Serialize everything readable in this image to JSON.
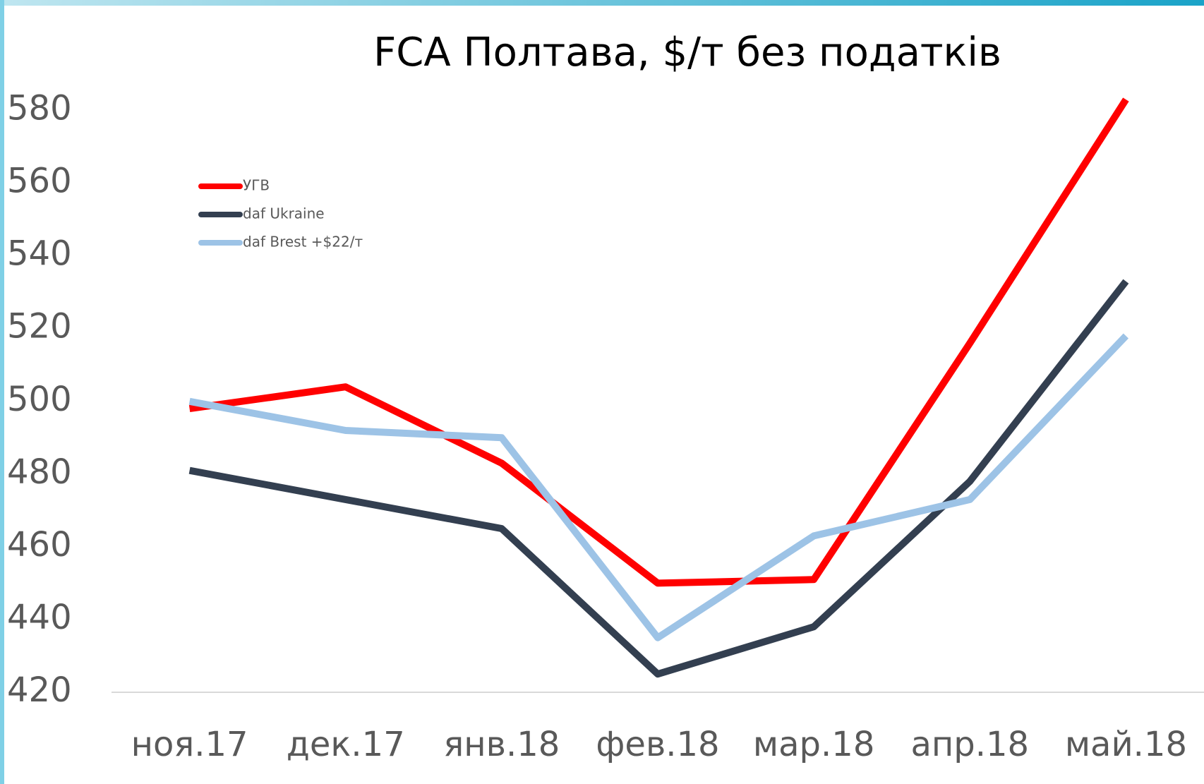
{
  "chart_data": {
    "type": "line",
    "title": "FCA Полтава, $/т без податків",
    "categories": [
      "ноя.17",
      "дек.17",
      "янв.18",
      "фев.18",
      "мар.18",
      "апр.18",
      "май.18"
    ],
    "series": [
      {
        "name": "УГВ",
        "color": "#ff0000",
        "values": [
          498,
          504,
          483,
          450,
          451,
          516,
          583
        ]
      },
      {
        "name": "daf Ukraine",
        "color": "#333f50",
        "values": [
          481,
          473,
          465,
          425,
          438,
          478,
          533
        ]
      },
      {
        "name": "daf Brest +$22/т",
        "color": "#9dc3e6",
        "values": [
          500,
          492,
          490,
          435,
          463,
          473,
          518
        ]
      }
    ],
    "ylim": [
      420,
      590
    ],
    "yticks": [
      420,
      440,
      460,
      480,
      500,
      520,
      540,
      560,
      580
    ],
    "legend": "top-left"
  }
}
